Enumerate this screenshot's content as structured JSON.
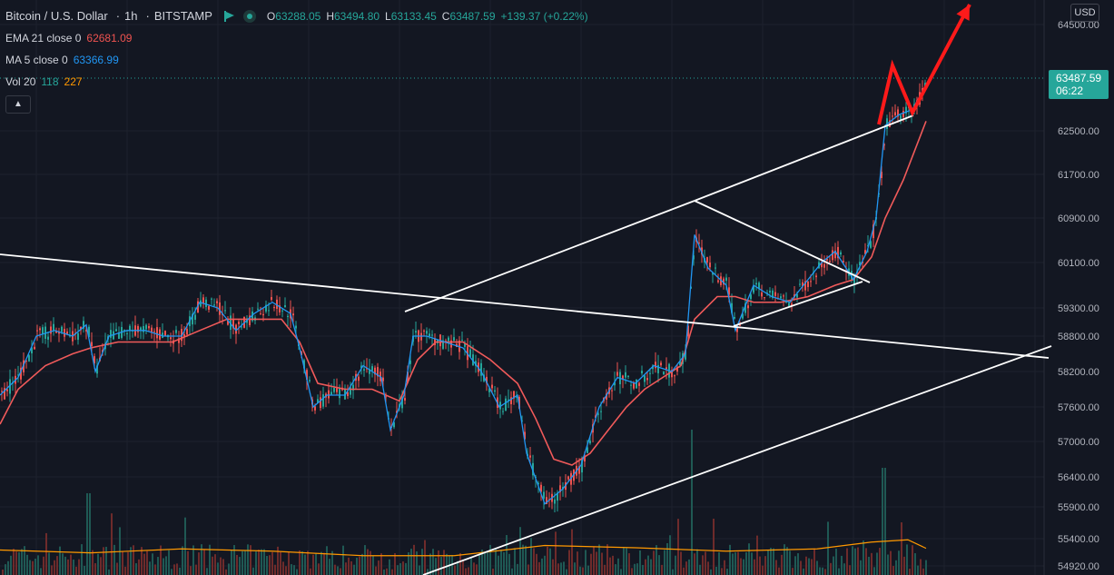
{
  "header": {
    "symbol": "Bitcoin / U.S. Dollar",
    "interval": "1h",
    "exchange": "BITSTAMP",
    "ohlc": {
      "o_label": "O",
      "o": "63288.05",
      "h_label": "H",
      "h": "63494.80",
      "l_label": "L",
      "l": "63133.45",
      "c_label": "C",
      "c": "63487.59",
      "change": "+139.37 (+0.22%)"
    }
  },
  "indicators": {
    "ema": {
      "name": "EMA 21 close 0",
      "value": "62681.09",
      "color": "#ef5350"
    },
    "ma": {
      "name": "MA 5 close 0",
      "value": "63366.99",
      "color": "#2196f3"
    },
    "vol": {
      "name": "Vol 20",
      "value": "118",
      "avg": "227",
      "value_color": "#26a69a",
      "avg_color": "#ff9800"
    }
  },
  "price_axis": {
    "currency": "USD",
    "ticks": [
      "64500.00",
      "62500.00",
      "61700.00",
      "60900.00",
      "60100.00",
      "59300.00",
      "58800.00",
      "58200.00",
      "57600.00",
      "57000.00",
      "56400.00",
      "55900.00",
      "55400.00",
      "54920.00"
    ],
    "last_price": "63487.59",
    "countdown": "06:22"
  },
  "colors": {
    "background": "#131722",
    "up": "#26a69a",
    "down": "#ef5350",
    "ma_line": "#2196f3",
    "ema_line": "#f05a5a",
    "vol_ma": "#ff9800",
    "drawing": "#ffffff",
    "arrow": "#ff1a1a"
  },
  "chart_data": {
    "type": "candlestick",
    "y_scale": "non-linear",
    "ylim": [
      54920,
      64500
    ],
    "grid": true,
    "last_price": 63487.59,
    "series": [
      {
        "name": "MA 5 close 0",
        "points": [
          [
            0,
            57800
          ],
          [
            20,
            58100
          ],
          [
            40,
            58800
          ],
          [
            60,
            58900
          ],
          [
            80,
            58800
          ],
          [
            95,
            59000
          ],
          [
            105,
            58200
          ],
          [
            120,
            58800
          ],
          [
            140,
            58900
          ],
          [
            160,
            58900
          ],
          [
            180,
            58800
          ],
          [
            200,
            58800
          ],
          [
            220,
            59400
          ],
          [
            240,
            59300
          ],
          [
            260,
            58900
          ],
          [
            280,
            59200
          ],
          [
            300,
            59400
          ],
          [
            320,
            59200
          ],
          [
            330,
            58600
          ],
          [
            345,
            57600
          ],
          [
            360,
            57800
          ],
          [
            380,
            57800
          ],
          [
            400,
            58300
          ],
          [
            420,
            58100
          ],
          [
            430,
            57200
          ],
          [
            445,
            57800
          ],
          [
            455,
            58800
          ],
          [
            470,
            58800
          ],
          [
            490,
            58700
          ],
          [
            510,
            58600
          ],
          [
            530,
            58200
          ],
          [
            550,
            57600
          ],
          [
            570,
            57800
          ],
          [
            580,
            56800
          ],
          [
            600,
            55950
          ],
          [
            620,
            56200
          ],
          [
            640,
            56600
          ],
          [
            660,
            57600
          ],
          [
            680,
            58100
          ],
          [
            700,
            58000
          ],
          [
            720,
            58300
          ],
          [
            740,
            58200
          ],
          [
            755,
            58500
          ],
          [
            765,
            60600
          ],
          [
            780,
            60000
          ],
          [
            800,
            59700
          ],
          [
            810,
            58900
          ],
          [
            830,
            59700
          ],
          [
            850,
            59500
          ],
          [
            870,
            59400
          ],
          [
            890,
            59800
          ],
          [
            905,
            60100
          ],
          [
            920,
            60300
          ],
          [
            940,
            59800
          ],
          [
            955,
            60300
          ],
          [
            965,
            60900
          ],
          [
            975,
            62600
          ],
          [
            990,
            62800
          ],
          [
            1005,
            62900
          ],
          [
            1020,
            63366.99
          ]
        ]
      },
      {
        "name": "EMA 21 close 0",
        "points": [
          [
            0,
            57300
          ],
          [
            20,
            57900
          ],
          [
            50,
            58300
          ],
          [
            80,
            58500
          ],
          [
            100,
            58600
          ],
          [
            130,
            58700
          ],
          [
            160,
            58700
          ],
          [
            190,
            58700
          ],
          [
            220,
            58900
          ],
          [
            250,
            59100
          ],
          [
            280,
            59100
          ],
          [
            310,
            59100
          ],
          [
            330,
            58700
          ],
          [
            350,
            58000
          ],
          [
            380,
            57900
          ],
          [
            410,
            57900
          ],
          [
            440,
            57700
          ],
          [
            460,
            58400
          ],
          [
            480,
            58700
          ],
          [
            510,
            58700
          ],
          [
            540,
            58400
          ],
          [
            570,
            58000
          ],
          [
            590,
            57400
          ],
          [
            610,
            56700
          ],
          [
            630,
            56600
          ],
          [
            650,
            56800
          ],
          [
            670,
            57200
          ],
          [
            690,
            57600
          ],
          [
            710,
            57900
          ],
          [
            730,
            58100
          ],
          [
            750,
            58300
          ],
          [
            765,
            59100
          ],
          [
            790,
            59500
          ],
          [
            810,
            59500
          ],
          [
            830,
            59400
          ],
          [
            860,
            59400
          ],
          [
            890,
            59500
          ],
          [
            920,
            59700
          ],
          [
            940,
            59800
          ],
          [
            960,
            60200
          ],
          [
            975,
            60900
          ],
          [
            995,
            61600
          ],
          [
            1020,
            62681.09
          ]
        ]
      },
      {
        "name": "Vol 20",
        "points": [
          [
            0,
            55200
          ],
          [
            100,
            55150
          ],
          [
            200,
            55220
          ],
          [
            300,
            55180
          ],
          [
            400,
            55100
          ],
          [
            500,
            55100
          ],
          [
            600,
            55280
          ],
          [
            700,
            55240
          ],
          [
            800,
            55180
          ],
          [
            900,
            55220
          ],
          [
            960,
            55340
          ],
          [
            1000,
            55380
          ],
          [
            1020,
            55230
          ]
        ]
      }
    ]
  },
  "drawings": [
    {
      "from": [
        0,
        280
      ],
      "to": [
        1155,
        394
      ]
    },
    {
      "from": [
        446,
        343
      ],
      "to": [
        765,
        221
      ]
    },
    {
      "from": [
        765,
        221
      ],
      "to": [
        1006,
        127
      ]
    },
    {
      "from": [
        765,
        221
      ],
      "to": [
        958,
        311
      ]
    },
    {
      "from": [
        808,
        359
      ],
      "to": [
        950,
        310
      ]
    },
    {
      "from": [
        466,
        633
      ],
      "to": [
        1158,
        381
      ]
    }
  ],
  "arrow_path": [
    [
      968,
      137
    ],
    [
      983,
      72
    ],
    [
      1005,
      124
    ],
    [
      1068,
      5
    ]
  ]
}
